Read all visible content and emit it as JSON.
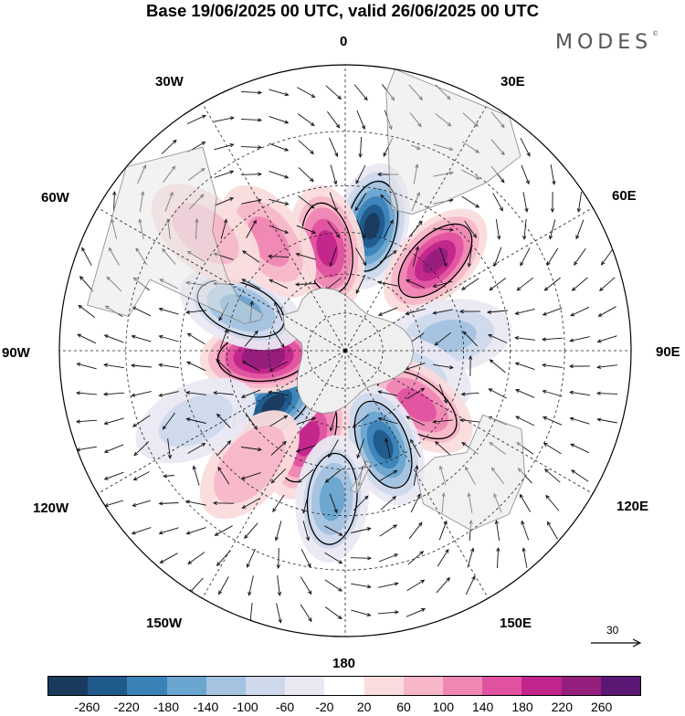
{
  "title": "Base 19/06/2025 00 UTC, valid 26/06/2025 00 UTC",
  "brand": "MODES",
  "brand_mark": "©",
  "longitude_labels": {
    "lon0": "0",
    "lon30e": "30E",
    "lon60e": "60E",
    "lon90e": "90E",
    "lon120e": "120E",
    "lon150e": "150E",
    "lon180": "180",
    "lon150w": "150W",
    "lon120w": "120W",
    "lon90w": "90W",
    "lon60w": "60W",
    "lon30w": "30W"
  },
  "reference_vector": "30",
  "colorbar": {
    "colors": [
      "#1a3a5e",
      "#1f5a8a",
      "#3a83b8",
      "#6aa5cf",
      "#a3c3e0",
      "#cfd9ec",
      "#e9e8f3",
      "#ffffff",
      "#fadcdc",
      "#f7b7c9",
      "#ef86b3",
      "#e052a0",
      "#c2258b",
      "#961e7c",
      "#5a1773"
    ],
    "ticks": [
      "-260",
      "-220",
      "-180",
      "-140",
      "-100",
      "-60",
      "-20",
      "20",
      "60",
      "100",
      "140",
      "180",
      "220",
      "260"
    ]
  },
  "map_layers": {
    "field": "height anomaly",
    "vectors": "wind",
    "antarctica_color": "#efefef",
    "boundary_color": "#888888"
  },
  "anomaly_centers": [
    {
      "name": "neg-0e",
      "lon": 12,
      "lat": -42,
      "value": -260
    },
    {
      "name": "pos-45e",
      "lon": 45,
      "lat": -42,
      "value": 240
    },
    {
      "name": "neg-80e",
      "lon": 82,
      "lat": -50,
      "value": -120
    },
    {
      "name": "neg-110e",
      "lon": 110,
      "lat": -63,
      "value": -80
    },
    {
      "name": "pos-125e",
      "lon": 127,
      "lat": -55,
      "value": 160
    },
    {
      "name": "neg-160e",
      "lon": 158,
      "lat": -51,
      "value": -240
    },
    {
      "name": "pos-155w",
      "lon": -157,
      "lat": -53,
      "value": 200
    },
    {
      "name": "neg-170w",
      "lon": -175,
      "lat": -35,
      "value": -140
    },
    {
      "name": "neg-130w",
      "lon": -127,
      "lat": -55,
      "value": -260
    },
    {
      "name": "pos-95w",
      "lon": -94,
      "lat": -58,
      "value": 260
    },
    {
      "name": "neg-70w",
      "lon": -68,
      "lat": -47,
      "value": -160
    },
    {
      "name": "pos-15w",
      "lon": -10,
      "lat": -50,
      "value": 200
    },
    {
      "name": "pos-35w",
      "lon": -35,
      "lat": -40,
      "value": 120
    },
    {
      "name": "pos-155e-mid",
      "lon": -140,
      "lat": -35,
      "value": 100
    },
    {
      "name": "neg-100w-weak",
      "lon": -115,
      "lat": -30,
      "value": -60
    },
    {
      "name": "pos-60w-high",
      "lon": -50,
      "lat": -25,
      "value": 80
    }
  ]
}
